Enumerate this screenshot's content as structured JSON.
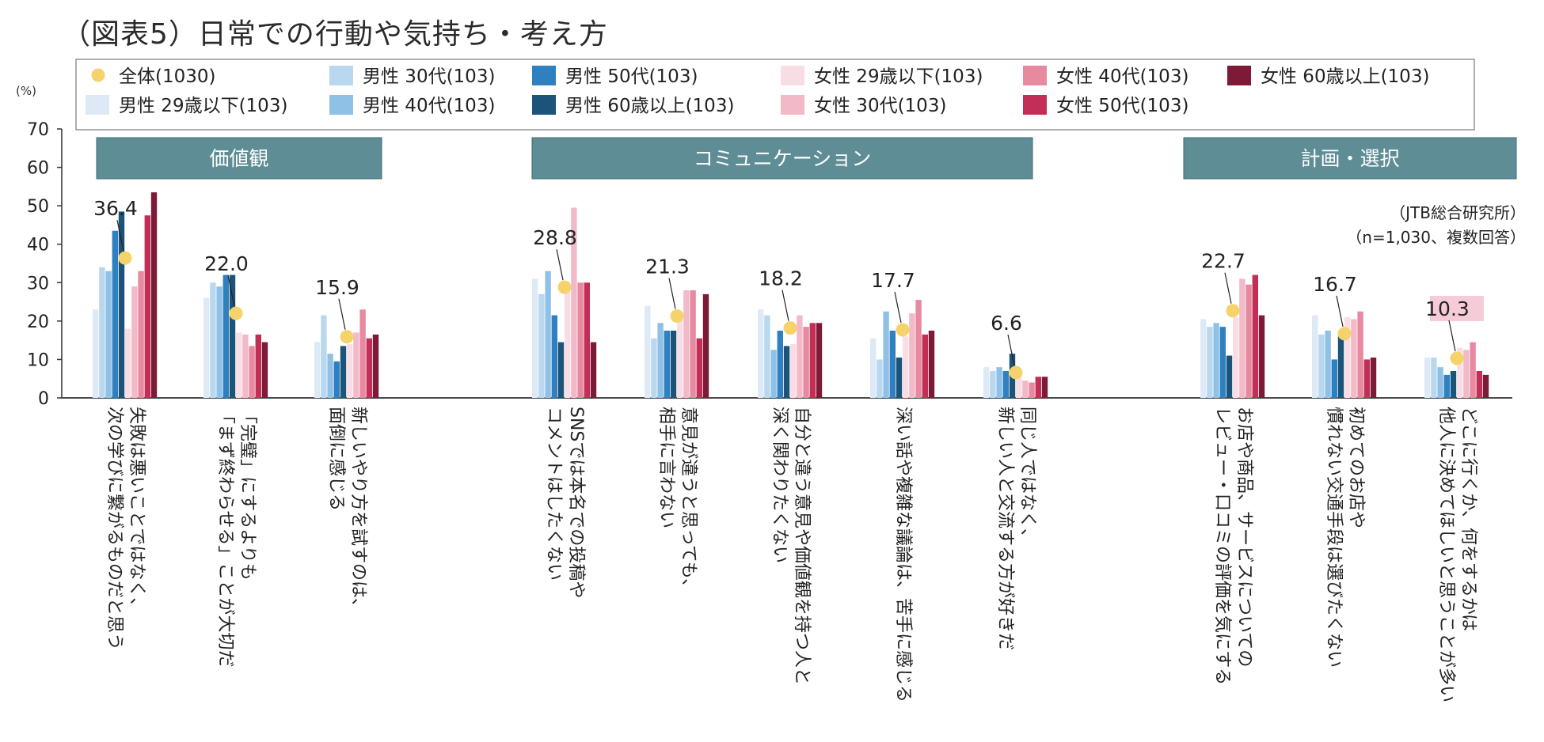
{
  "title": "（図表5）日常での行動や気持ち・考え方",
  "unit_label": "(%)",
  "source_line1": "（JTB総合研究所）",
  "source_line2": "（n=1,030、複数回答）",
  "colors": {
    "axis": "#333333",
    "group_header_bg": "#5e8d95",
    "group_header_text": "#ffffff",
    "total_dot": "#f5d36a",
    "callout_bg": "#f6cbd8"
  },
  "chart_data": {
    "type": "bar",
    "ylim": [
      0,
      70
    ],
    "yticks": [
      0,
      10,
      20,
      30,
      40,
      50,
      60,
      70
    ],
    "total_series": {
      "name": "全体(1030)",
      "color": "#f5d36a"
    },
    "series": [
      {
        "name": "男性 29歳以下(103)",
        "color": "#ddeaf6"
      },
      {
        "name": "男性 30代(103)",
        "color": "#b9d7ef"
      },
      {
        "name": "男性 40代(103)",
        "color": "#8fc1e6"
      },
      {
        "name": "男性 50代(103)",
        "color": "#2e80c1"
      },
      {
        "name": "男性 60歳以上(103)",
        "color": "#1c5378"
      },
      {
        "name": "女性 29歳以下(103)",
        "color": "#f9dde5"
      },
      {
        "name": "女性 30代(103)",
        "color": "#f2b9c8"
      },
      {
        "name": "女性 40代(103)",
        "color": "#e7899f"
      },
      {
        "name": "女性 50代(103)",
        "color": "#c22e56"
      },
      {
        "name": "女性 60歳以上(103)",
        "color": "#7d1a37"
      }
    ],
    "groups": [
      {
        "label": "価値観",
        "first": 0,
        "last": 2
      },
      {
        "label": "コミュニケーション",
        "first": 3,
        "last": 7
      },
      {
        "label": "計画・選択",
        "first": 8,
        "last": 10
      }
    ],
    "categories": [
      {
        "label_lines": [
          "失敗は悪いことではなく、",
          "次の学びに繋がるものだと思う"
        ],
        "total": 36.4,
        "total_label": "36.4",
        "values": [
          23,
          34,
          33,
          43.5,
          48.5,
          18,
          29,
          33,
          47.5,
          53.5
        ]
      },
      {
        "label_lines": [
          "「完璧」にするよりも",
          "「まず終わらせる」ことが大切だ"
        ],
        "total": 22.0,
        "total_label": "22.0",
        "values": [
          26,
          30,
          29,
          32,
          32,
          17,
          16.5,
          13.5,
          16.5,
          14.5
        ]
      },
      {
        "label_lines": [
          "新しいやり方を試すのは、",
          "面倒に感じる"
        ],
        "total": 15.9,
        "total_label": "15.9",
        "values": [
          14.5,
          21.5,
          11.5,
          9.5,
          13.5,
          14,
          17,
          23,
          15.5,
          16.5
        ]
      },
      {
        "label_lines": [
          "SNSでは本名での投稿や",
          "コメントはしたくない"
        ],
        "total": 28.8,
        "total_label": "28.8",
        "values": [
          31,
          27,
          33,
          21.5,
          14.5,
          30,
          49.5,
          30,
          30,
          14.5
        ]
      },
      {
        "label_lines": [
          "意見が違うと思っても、",
          "相手に言わない"
        ],
        "total": 21.3,
        "total_label": "21.3",
        "values": [
          24,
          15.5,
          19.5,
          17.5,
          17.5,
          22,
          28,
          28,
          15.5,
          27
        ]
      },
      {
        "label_lines": [
          "自分と違う意見や価値観を持つ人と",
          "深く関わりたくない"
        ],
        "total": 18.2,
        "total_label": "18.2",
        "values": [
          23,
          21.5,
          12.5,
          17.5,
          13.5,
          14,
          21.5,
          18.5,
          19.5,
          19.5
        ]
      },
      {
        "label_lines": [
          "深い話や複雑な議論は、苦手に感じる"
        ],
        "total": 17.7,
        "total_label": "17.7",
        "values": [
          15.5,
          10,
          22.5,
          17.5,
          10.5,
          16,
          22,
          25.5,
          16.5,
          17.5
        ]
      },
      {
        "label_lines": [
          "同じ人ではなく、",
          "新しい人と交流する方が好きだ"
        ],
        "total": 6.6,
        "total_label": "6.6",
        "values": [
          8,
          7,
          8,
          7,
          11.5,
          6,
          4.5,
          4,
          5.5,
          5.5
        ]
      },
      {
        "label_lines": [
          "お店や商品、サービスについての",
          "レビュー・口コミの評価を気にする"
        ],
        "total": 22.7,
        "total_label": "22.7",
        "values": [
          20.5,
          18.5,
          19.5,
          18.5,
          11,
          21,
          31,
          29.5,
          32,
          21.5
        ]
      },
      {
        "label_lines": [
          "初めてのお店や",
          "慣れない交通手段は選びたくない"
        ],
        "total": 16.7,
        "total_label": "16.7",
        "values": [
          21.5,
          16.5,
          17.5,
          10,
          16,
          21,
          20.5,
          22.5,
          10,
          10.5
        ]
      },
      {
        "label_lines": [
          "どこに行くか、何をするかは",
          "他人に決めてほしいと思うことが多い"
        ],
        "total": 10.3,
        "total_label": "10.3",
        "values": [
          10.5,
          10.5,
          8,
          6,
          7,
          13,
          12.5,
          14.5,
          7,
          6
        ]
      }
    ]
  }
}
